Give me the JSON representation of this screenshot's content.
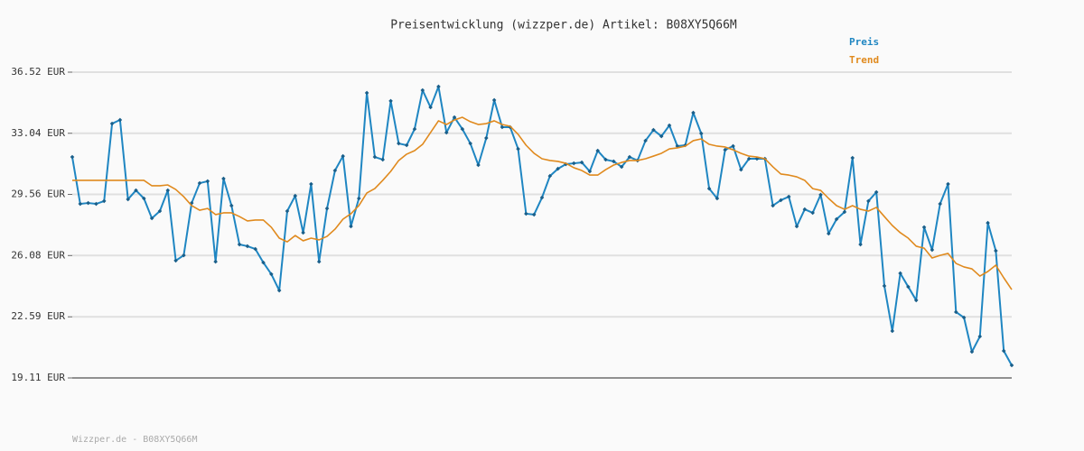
{
  "chart_data": {
    "type": "line",
    "title": "Preisentwicklung (wizzper.de) Artikel: B08XY5Q66M",
    "footer": "Wizzper.de - B08XY5Q66M",
    "ylim": [
      19.11,
      36.52
    ],
    "yticks": [
      {
        "value": 19.11,
        "label": "19.11 EUR"
      },
      {
        "value": 22.59,
        "label": "22.59 EUR"
      },
      {
        "value": 26.08,
        "label": "26.08 EUR"
      },
      {
        "value": 29.56,
        "label": "29.56 EUR"
      },
      {
        "value": 33.04,
        "label": "33.04 EUR"
      },
      {
        "value": 36.52,
        "label": "36.52 EUR"
      }
    ],
    "grid": true,
    "legend": "top-right",
    "series": [
      {
        "name": "Preis",
        "color": "#1f86c2",
        "marker": "diamond",
        "values": [
          31.69,
          29.02,
          29.07,
          29.02,
          29.18,
          33.59,
          33.8,
          29.28,
          29.79,
          29.33,
          28.2,
          28.61,
          29.79,
          25.79,
          26.09,
          29.07,
          30.2,
          30.31,
          25.73,
          30.46,
          28.92,
          26.71,
          26.61,
          26.45,
          25.68,
          25.02,
          24.09,
          28.61,
          29.48,
          27.38,
          30.15,
          25.73,
          28.76,
          30.92,
          31.74,
          27.74,
          29.33,
          35.34,
          31.69,
          31.54,
          34.88,
          32.46,
          32.36,
          33.28,
          35.49,
          34.52,
          35.7,
          33.08,
          33.95,
          33.28,
          32.46,
          31.23,
          32.77,
          34.93,
          33.39,
          33.39,
          32.15,
          28.46,
          28.41,
          29.38,
          30.61,
          31.02,
          31.28,
          31.33,
          31.38,
          30.87,
          32.05,
          31.54,
          31.44,
          31.13,
          31.69,
          31.49,
          32.62,
          33.23,
          32.87,
          33.49,
          32.31,
          32.36,
          34.21,
          33.03,
          29.89,
          29.33,
          32.1,
          32.31,
          30.97,
          31.59,
          31.59,
          31.59,
          28.92,
          29.23,
          29.43,
          27.74,
          28.71,
          28.51,
          29.54,
          27.33,
          28.15,
          28.56,
          31.64,
          26.71,
          29.18,
          29.69,
          24.35,
          21.78,
          25.07,
          24.3,
          23.53,
          27.69,
          26.4,
          29.02,
          30.15,
          22.86,
          22.55,
          20.6,
          21.47,
          27.94,
          26.35,
          20.65,
          19.83
        ]
      },
      {
        "name": "Trend",
        "color": "#e08a1e",
        "values": [
          30.36,
          30.36,
          30.36,
          30.36,
          30.36,
          30.36,
          30.36,
          30.36,
          30.36,
          30.36,
          30.05,
          30.05,
          30.1,
          29.84,
          29.43,
          28.92,
          28.66,
          28.76,
          28.41,
          28.51,
          28.51,
          28.3,
          28.05,
          28.1,
          28.1,
          27.69,
          27.07,
          26.86,
          27.22,
          26.92,
          27.07,
          26.97,
          27.17,
          27.58,
          28.15,
          28.46,
          28.92,
          29.64,
          29.89,
          30.36,
          30.87,
          31.49,
          31.85,
          32.05,
          32.41,
          33.08,
          33.75,
          33.54,
          33.8,
          33.95,
          33.7,
          33.54,
          33.59,
          33.75,
          33.54,
          33.44,
          32.98,
          32.36,
          31.9,
          31.59,
          31.49,
          31.44,
          31.33,
          31.08,
          30.92,
          30.66,
          30.66,
          30.97,
          31.23,
          31.38,
          31.49,
          31.49,
          31.59,
          31.74,
          31.9,
          32.15,
          32.21,
          32.31,
          32.62,
          32.72,
          32.41,
          32.31,
          32.26,
          32.1,
          31.9,
          31.74,
          31.69,
          31.59,
          31.13,
          30.72,
          30.66,
          30.56,
          30.36,
          29.89,
          29.79,
          29.33,
          28.92,
          28.71,
          28.92,
          28.71,
          28.61,
          28.82,
          28.3,
          27.79,
          27.38,
          27.07,
          26.61,
          26.5,
          25.94,
          26.09,
          26.2,
          25.63,
          25.43,
          25.32,
          24.91,
          25.17,
          25.53,
          24.81,
          24.14
        ]
      }
    ]
  }
}
